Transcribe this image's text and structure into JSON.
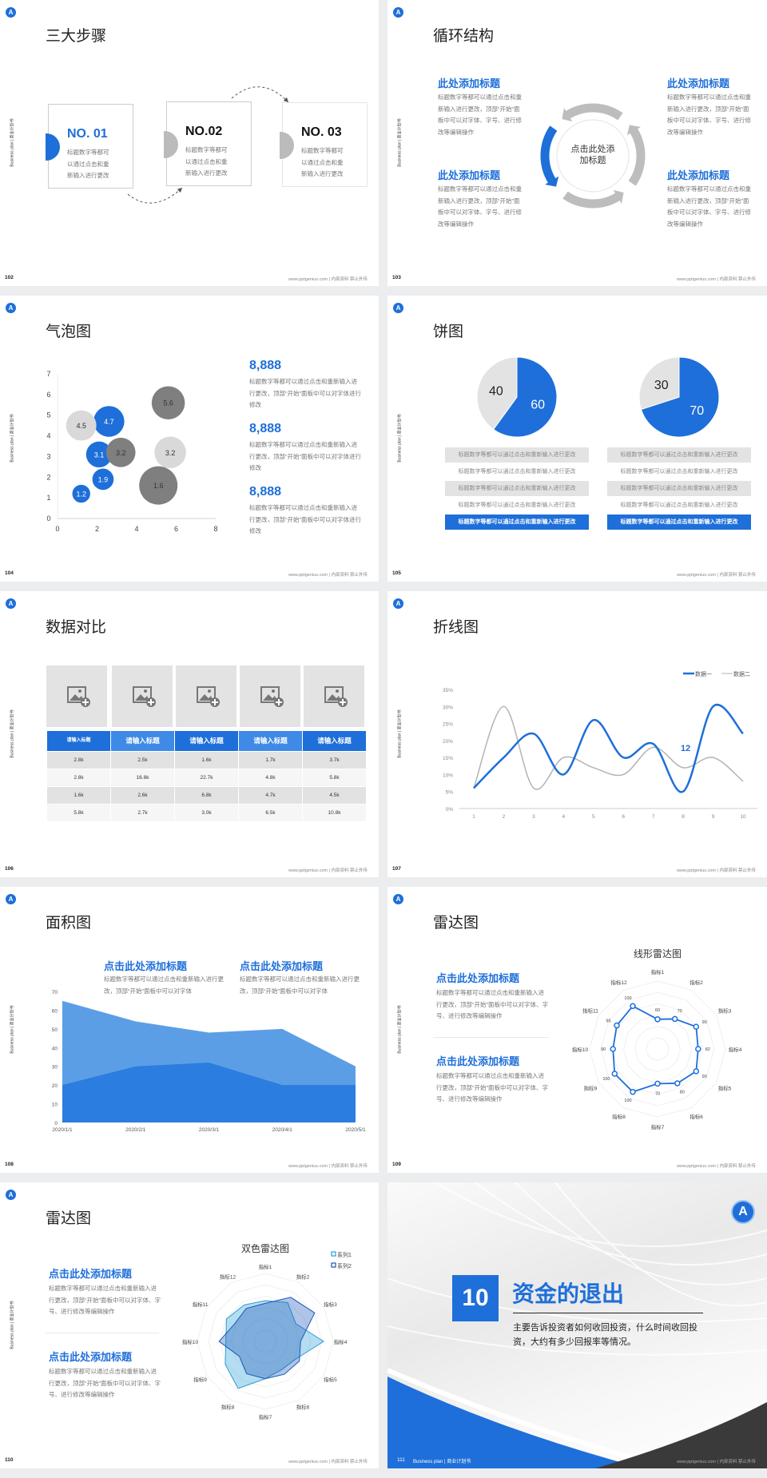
{
  "common": {
    "sidebar_text": "Business plan | 商业计划书",
    "footer_text": "www.pptgenius.com | 内部资料 禁止外传",
    "logo_text": "A",
    "brand_color": "#1e6fd9"
  },
  "slide102": {
    "page": "102",
    "title": "三大步骤",
    "steps": [
      {
        "label": "NO. 01",
        "text": "标题数字等都可以通过点击和重新输入进行更改"
      },
      {
        "label": "NO.02",
        "text": "标题数字等都可以通过点击和重新输入进行更改"
      },
      {
        "label": "NO. 03",
        "text": "标题数字等都可以通过点击和重新输入进行更改"
      }
    ]
  },
  "slide103": {
    "page": "103",
    "title": "循环结构",
    "center": "点击此处添加标题",
    "blocks": [
      {
        "heading": "此处添加标题",
        "text": "标题数字等都可以通过点击和重新输入进行更改，顶部“开始”面板中可以对字体、字号、进行修改等编辑操作"
      },
      {
        "heading": "此处添加标题",
        "text": "标题数字等都可以通过点击和重新输入进行更改，顶部“开始”面板中可以对字体、字号、进行修改等编辑操作"
      },
      {
        "heading": "此处添加标题",
        "text": "标题数字等都可以通过点击和重新输入进行更改，顶部“开始”面板中可以对字体、字号、进行修改等编辑操作"
      },
      {
        "heading": "此处添加标题",
        "text": "标题数字等都可以通过点击和重新输入进行更改，顶部“开始”面板中可以对字体、字号、进行修改等编辑操作"
      }
    ]
  },
  "slide104": {
    "page": "104",
    "title": "气泡图",
    "stats": [
      {
        "value": "8,888",
        "text": "标题数字等都可以通过点击和重新输入进行更改，顶部“开始”面板中可以对字体进行修改"
      },
      {
        "value": "8,888",
        "text": "标题数字等都可以通过点击和重新输入进行更改，顶部“开始”面板中可以对字体进行修改"
      },
      {
        "value": "8,888",
        "text": "标题数字等都可以通过点击和重新输入进行更改，顶部“开始”面板中可以对字体进行修改"
      }
    ]
  },
  "slide105": {
    "page": "105",
    "title": "饼图",
    "rows_left": [
      "标题数字等都可以通过点击和重新输入进行更改",
      "标题数字等都可以通过点击和重新输入进行更改",
      "标题数字等都可以通过点击和重新输入进行更改",
      "标题数字等都可以通过点击和重新输入进行更改",
      "标题数字等都可以通过点击和重新输入进行更改"
    ],
    "rows_right": [
      "标题数字等都可以通过点击和重新输入进行更改",
      "标题数字等都可以通过点击和重新输入进行更改",
      "标题数字等都可以通过点击和重新输入进行更改",
      "标题数字等都可以通过点击和重新输入进行更改",
      "标题数字等都可以通过点击和重新输入进行更改"
    ]
  },
  "slide106": {
    "page": "106",
    "title": "数据对比",
    "headers": [
      "请输入标题",
      "请输入标题",
      "请输入标题",
      "请输入标题",
      "请输入标题"
    ],
    "rows": [
      [
        "2.8k",
        "2.5k",
        "1.6k",
        "1.7k",
        "3.7k"
      ],
      [
        "2.8k",
        "16.8k",
        "22.7k",
        "4.8k",
        "5.8k"
      ],
      [
        "1.6k",
        "2.6k",
        "6.8k",
        "4.7k",
        "4.5k"
      ],
      [
        "5.8k",
        "2.7k",
        "3.0k",
        "6.5k",
        "10.8k"
      ]
    ]
  },
  "slide107": {
    "page": "107",
    "title": "折线图"
  },
  "slide108": {
    "page": "108",
    "title": "面积图",
    "blocks": [
      {
        "heading": "点击此处添加标题",
        "text": "标题数字等都可以通过点击和重新输入进行更改，顶部“开始”面板中可以对字体"
      },
      {
        "heading": "点击此处添加标题",
        "text": "标题数字等都可以通过点击和重新输入进行更改，顶部“开始”面板中可以对字体"
      }
    ]
  },
  "slide109": {
    "page": "109",
    "title": "雷达图",
    "blocks": [
      {
        "heading": "点击此处添加标题",
        "text": "标题数字等都可以通过点击和重新输入进行更改，顶部“开始”面板中可以对字体、字号、进行修改等编辑操作"
      },
      {
        "heading": "点击此处添加标题",
        "text": "标题数字等都可以通过点击和重新输入进行更改，顶部“开始”面板中可以对字体、字号、进行修改等编辑操作"
      }
    ]
  },
  "slide110": {
    "page": "110",
    "title": "雷达图",
    "blocks": [
      {
        "heading": "点击此处添加标题",
        "text": "标题数字等都可以通过点击和重新输入进行更改，顶部“开始”面板中可以对字体、字号、进行修改等编辑操作"
      },
      {
        "heading": "点击此处添加标题",
        "text": "标题数字等都可以通过点击和重新输入进行更改，顶部“开始”面板中可以对字体、字号、进行修改等编辑操作"
      }
    ]
  },
  "slide111": {
    "page": "111",
    "number": "10",
    "title": "资金的退出",
    "text": "主要告诉投资者如何收回投资，什么时间收回投资，大约有多少回报率等情况。",
    "bottom_label": "Business plan | 商业计划书"
  },
  "chart_data": [
    {
      "id": "bubble",
      "type": "scatter",
      "xlim": [
        0,
        8
      ],
      "ylim": [
        0,
        7
      ],
      "xticks": [
        "0",
        "2",
        "4",
        "6",
        "8"
      ],
      "yticks": [
        "0",
        "1",
        "2",
        "3",
        "4",
        "5",
        "6",
        "7"
      ],
      "points": [
        {
          "x": 1.2,
          "y": 1.2,
          "size": 1.2,
          "label": "1.2",
          "color": "#1e6fd9"
        },
        {
          "x": 2.3,
          "y": 1.9,
          "size": 1.9,
          "label": "1.9",
          "color": "#1e6fd9"
        },
        {
          "x": 2.1,
          "y": 3.1,
          "size": 3.1,
          "label": "3.1",
          "color": "#1e6fd9"
        },
        {
          "x": 2.6,
          "y": 4.7,
          "size": 4.7,
          "label": "4.7",
          "color": "#1e6fd9"
        },
        {
          "x": 1.2,
          "y": 4.5,
          "size": 4.5,
          "label": "4.5",
          "color": "#d9d9d9"
        },
        {
          "x": 5.7,
          "y": 3.2,
          "size": 5.0,
          "label": "3.2",
          "color": "#d9d9d9"
        },
        {
          "x": 3.2,
          "y": 3.2,
          "size": 4.2,
          "label": "3.2",
          "color": "#7f7f7f"
        },
        {
          "x": 5.6,
          "y": 5.6,
          "size": 5.6,
          "label": "5.6",
          "color": "#7f7f7f"
        },
        {
          "x": 5.1,
          "y": 1.6,
          "size": 9.0,
          "label": "1.6",
          "color": "#7f7f7f"
        }
      ]
    },
    {
      "id": "pies",
      "type": "pie",
      "pies": [
        {
          "values": [
            60,
            40
          ],
          "labels": [
            "60",
            "40"
          ],
          "colors": [
            "#1e6fd9",
            "#e3e3e3"
          ]
        },
        {
          "values": [
            70,
            30
          ],
          "labels": [
            "70",
            "30"
          ],
          "colors": [
            "#1e6fd9",
            "#e3e3e3"
          ]
        }
      ]
    },
    {
      "id": "line",
      "type": "line",
      "x": [
        "1",
        "2",
        "3",
        "4",
        "5",
        "6",
        "7",
        "8",
        "9",
        "10"
      ],
      "ylim": [
        0,
        35
      ],
      "yticks": [
        "0%",
        "5%",
        "10%",
        "15%",
        "20%",
        "25%",
        "30%",
        "35%"
      ],
      "series": [
        {
          "name": "数据一",
          "values": [
            6,
            15,
            22,
            10,
            26,
            15,
            19,
            5,
            30,
            22
          ],
          "color": "#1e6fd9"
        },
        {
          "name": "数据二",
          "values": [
            6,
            30,
            6,
            15,
            12,
            10,
            18,
            12,
            15,
            8
          ],
          "color": "#b3b3b3"
        }
      ],
      "annotation": "12",
      "legend": "top-right"
    },
    {
      "id": "area",
      "type": "area",
      "x": [
        "2020/1/1",
        "2020/2/1",
        "2020/3/1",
        "2020/4/1",
        "2020/5/1"
      ],
      "ylim": [
        0,
        70
      ],
      "yticks": [
        "0",
        "10",
        "20",
        "30",
        "40",
        "50",
        "60",
        "70"
      ],
      "series": [
        {
          "values": [
            65,
            54,
            48,
            50,
            30
          ],
          "color": "#5c9ee6"
        },
        {
          "values": [
            20,
            30,
            32,
            20,
            20
          ],
          "color": "#2b7de0"
        }
      ]
    },
    {
      "id": "radar1",
      "type": "radar",
      "title": "线形雷达图",
      "axes": [
        "指标1",
        "指标2",
        "指标3",
        "指标4",
        "指标5",
        "指标6",
        "指标7",
        "指标8",
        "指标9",
        "指标10",
        "指标11",
        "指标12"
      ],
      "series": [
        {
          "values": [
            60,
            70,
            90,
            82,
            90,
            80,
            70,
            100,
            100,
            90,
            95,
            100
          ],
          "color": "#1e6fd9"
        }
      ],
      "data_labels": true
    },
    {
      "id": "radar2",
      "type": "radar",
      "title": "双色雷达图",
      "axes": [
        "指标1",
        "指标2",
        "指标3",
        "指标4",
        "指标5",
        "指标6",
        "指标7",
        "指标8",
        "指标9",
        "指标10",
        "指标11",
        "指标12"
      ],
      "series": [
        {
          "name": "系列1",
          "values": [
            60,
            66,
            52,
            86,
            52,
            48,
            55,
            80,
            68,
            58,
            66,
            62
          ],
          "color": "#2a9fd6"
        },
        {
          "name": "系列2",
          "values": [
            56,
            75,
            84,
            52,
            58,
            56,
            55,
            55,
            44,
            68,
            52,
            56
          ],
          "color": "#1a55b8"
        }
      ],
      "legend": "top-right"
    }
  ]
}
